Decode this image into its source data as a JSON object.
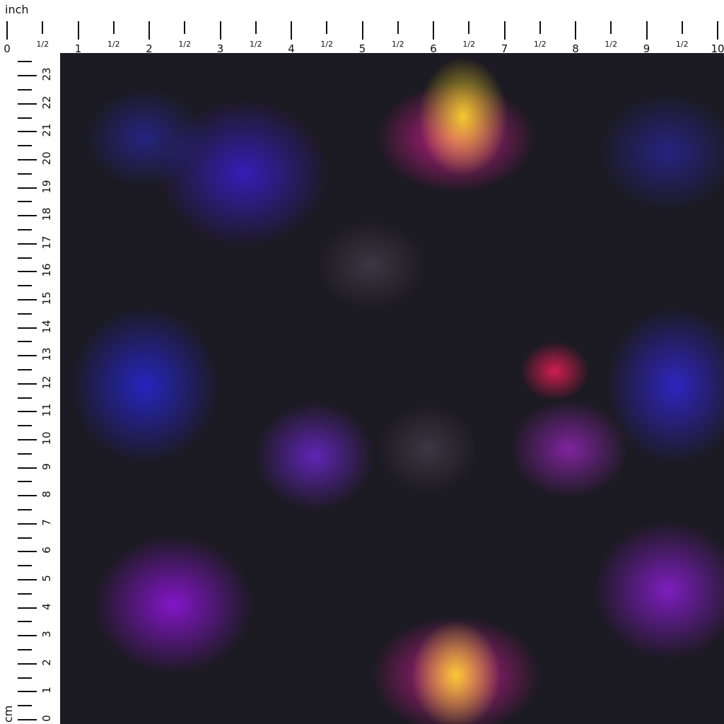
{
  "ruler_top": {
    "unit": "inch",
    "labels": [
      "0",
      "1",
      "2",
      "3",
      "4",
      "5",
      "6",
      "7",
      "8",
      "9",
      "10"
    ],
    "half_label": "1/2"
  },
  "ruler_left": {
    "unit": "cm",
    "labels": [
      "23",
      "22",
      "21",
      "20",
      "19",
      "18",
      "17",
      "16",
      "15",
      "14",
      "13",
      "12",
      "11",
      "10",
      "9",
      "8",
      "7",
      "6",
      "5",
      "4",
      "3",
      "2",
      "1",
      "0"
    ]
  },
  "fabric": {
    "description_colors": [
      "#1c1a22",
      "#5a2de0",
      "#e81ea8",
      "#ffd828"
    ]
  }
}
